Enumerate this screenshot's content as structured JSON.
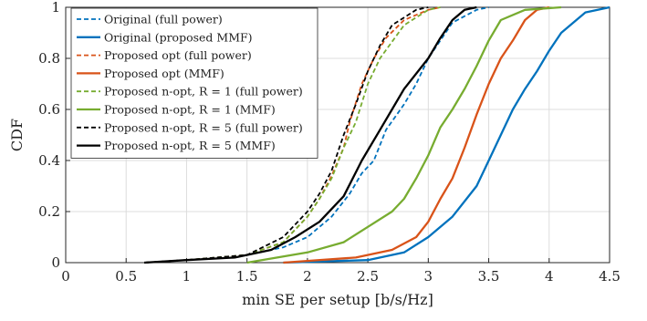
{
  "chart_data": {
    "type": "line",
    "title": "",
    "xlabel": "min SE per setup [b/s/Hz]",
    "ylabel": "CDF",
    "xlim": [
      0,
      4.5
    ],
    "ylim": [
      0,
      1
    ],
    "x_ticks": [
      "0",
      "0.5",
      "1",
      "1.5",
      "2",
      "2.5",
      "3",
      "3.5",
      "4",
      "4.5"
    ],
    "y_ticks": [
      "0",
      "0.2",
      "0.4",
      "0.6",
      "0.8",
      "1"
    ],
    "grid": true,
    "legend_position": "top-left",
    "series": [
      {
        "name": "Original (full power)",
        "color": "#0072BD",
        "dash": "dashed",
        "x": [
          0.65,
          1.0,
          1.5,
          1.8,
          2.0,
          2.2,
          2.35,
          2.45,
          2.55,
          2.65,
          2.8,
          2.9,
          3.0,
          3.2,
          3.4,
          3.5
        ],
        "y": [
          0,
          0.01,
          0.03,
          0.06,
          0.1,
          0.18,
          0.27,
          0.35,
          0.4,
          0.52,
          0.62,
          0.7,
          0.8,
          0.94,
          0.99,
          1.0
        ]
      },
      {
        "name": "Original (proposed MMF)",
        "color": "#0072BD",
        "dash": "solid",
        "x": [
          1.8,
          2.5,
          2.8,
          3.0,
          3.2,
          3.4,
          3.5,
          3.6,
          3.7,
          3.8,
          3.9,
          4.0,
          4.1,
          4.3,
          4.5
        ],
        "y": [
          0,
          0.01,
          0.04,
          0.1,
          0.18,
          0.3,
          0.4,
          0.5,
          0.6,
          0.68,
          0.75,
          0.83,
          0.9,
          0.98,
          1.0
        ]
      },
      {
        "name": "Proposed opt (full power)",
        "color": "#D95319",
        "dash": "dashed",
        "x": [
          0.65,
          1.0,
          1.5,
          1.8,
          2.0,
          2.1,
          2.2,
          2.3,
          2.35,
          2.45,
          2.55,
          2.65,
          2.8,
          3.0,
          3.1
        ],
        "y": [
          0,
          0.01,
          0.03,
          0.08,
          0.18,
          0.25,
          0.34,
          0.45,
          0.55,
          0.7,
          0.8,
          0.88,
          0.95,
          0.99,
          1.0
        ]
      },
      {
        "name": "Proposed opt (MMF)",
        "color": "#D95319",
        "dash": "solid",
        "x": [
          1.8,
          2.4,
          2.7,
          2.9,
          3.0,
          3.1,
          3.2,
          3.3,
          3.4,
          3.5,
          3.6,
          3.7,
          3.8,
          3.9,
          4.0
        ],
        "y": [
          0,
          0.02,
          0.05,
          0.1,
          0.16,
          0.25,
          0.33,
          0.45,
          0.58,
          0.7,
          0.8,
          0.87,
          0.95,
          0.99,
          1.0
        ]
      },
      {
        "name": "Proposed n-opt, R = 1 (full power)",
        "color": "#77AC30",
        "dash": "dashed",
        "x": [
          0.65,
          1.0,
          1.5,
          1.8,
          2.0,
          2.1,
          2.2,
          2.3,
          2.4,
          2.5,
          2.6,
          2.8,
          3.0,
          3.1
        ],
        "y": [
          0,
          0.01,
          0.03,
          0.08,
          0.18,
          0.25,
          0.33,
          0.45,
          0.55,
          0.7,
          0.8,
          0.93,
          0.99,
          1.0
        ]
      },
      {
        "name": "Proposed n-opt, R = 1 (MMF)",
        "color": "#77AC30",
        "dash": "solid",
        "x": [
          1.5,
          2.0,
          2.3,
          2.5,
          2.7,
          2.8,
          2.9,
          3.0,
          3.1,
          3.2,
          3.3,
          3.4,
          3.5,
          3.6,
          3.8,
          4.1
        ],
        "y": [
          0,
          0.04,
          0.08,
          0.14,
          0.2,
          0.25,
          0.33,
          0.42,
          0.53,
          0.6,
          0.68,
          0.77,
          0.87,
          0.95,
          0.99,
          1.0
        ]
      },
      {
        "name": "Proposed n-opt, R = 5 (full power)",
        "color": "#000000",
        "dash": "dashed",
        "x": [
          0.65,
          1.0,
          1.5,
          1.8,
          2.0,
          2.1,
          2.2,
          2.3,
          2.4,
          2.5,
          2.6,
          2.7,
          2.9,
          3.0
        ],
        "y": [
          0,
          0.01,
          0.03,
          0.1,
          0.2,
          0.27,
          0.36,
          0.5,
          0.62,
          0.75,
          0.85,
          0.93,
          0.99,
          1.0
        ]
      },
      {
        "name": "Proposed n-opt, R = 5 (MMF)",
        "color": "#000000",
        "dash": "solid",
        "x": [
          0.65,
          1.0,
          1.4,
          1.7,
          1.9,
          2.1,
          2.3,
          2.45,
          2.6,
          2.7,
          2.8,
          3.0,
          3.1,
          3.2,
          3.3,
          3.4
        ],
        "y": [
          0,
          0.01,
          0.02,
          0.05,
          0.1,
          0.16,
          0.26,
          0.4,
          0.52,
          0.6,
          0.68,
          0.8,
          0.88,
          0.95,
          0.99,
          1.0
        ]
      }
    ]
  }
}
